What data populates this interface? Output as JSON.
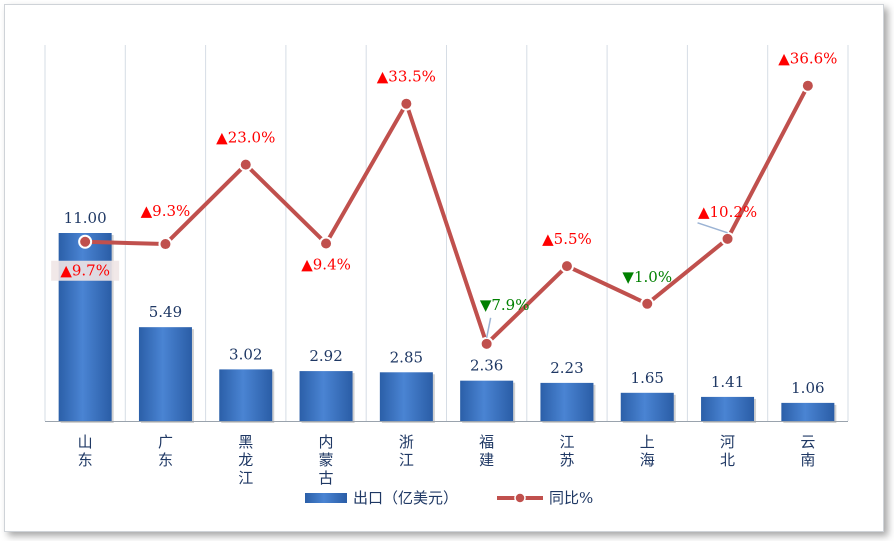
{
  "chart_data": {
    "type": "bar",
    "categories": [
      "山东",
      "广东",
      "黑龙江",
      "内蒙古",
      "浙江",
      "福建",
      "江苏",
      "上海",
      "河北",
      "云南"
    ],
    "series": [
      {
        "name": "出口（亿美元）",
        "type": "bar",
        "axis": "left",
        "values": [
          11.0,
          5.49,
          3.02,
          2.92,
          2.85,
          2.36,
          2.23,
          1.65,
          1.41,
          1.06
        ],
        "labels": [
          "11.00",
          "5.49",
          "3.02",
          "2.92",
          "2.85",
          "2.36",
          "2.23",
          "1.65",
          "1.41",
          "1.06"
        ],
        "color": "#3a6fc0"
      },
      {
        "name": "同比%",
        "type": "line",
        "axis": "right",
        "values": [
          9.7,
          9.3,
          23.0,
          9.4,
          33.5,
          -7.9,
          5.5,
          -1.0,
          10.2,
          36.6
        ],
        "labels": [
          "▲9.7%",
          "▲9.3%",
          "▲23.0%",
          "▲9.4%",
          "▲33.5%",
          "▼7.9%",
          "▲5.5%",
          "▼1.0%",
          "▲10.2%",
          "▲36.6%"
        ],
        "color": "#c0504d"
      }
    ],
    "bar_ylim": [
      0,
      22
    ],
    "line_ylim": [
      -10,
      40
    ],
    "grid": "vertical",
    "legend": "bottom",
    "colors": {
      "up": "#ff0000",
      "down": "#008000",
      "value_label": "#1f3864",
      "grid": "#d6dde5"
    }
  }
}
